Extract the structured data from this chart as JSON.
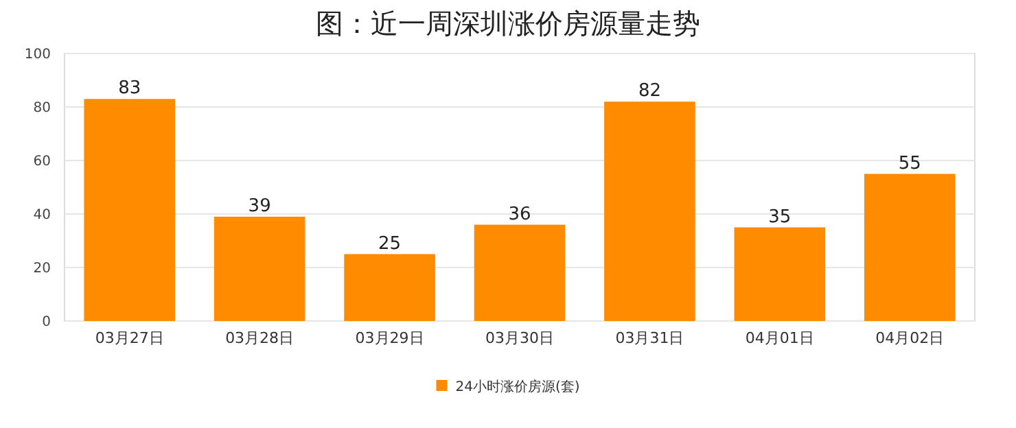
{
  "chart_data": {
    "type": "bar",
    "title": "图：近一周深圳涨价房源量走势",
    "categories": [
      "03月27日",
      "03月28日",
      "03月29日",
      "03月30日",
      "03月31日",
      "04月01日",
      "04月02日"
    ],
    "series": [
      {
        "name": "24小时涨价房源(套)",
        "color": "#ff8c00",
        "values": [
          83,
          39,
          25,
          36,
          82,
          35,
          55
        ]
      }
    ],
    "ylim": [
      0,
      100
    ],
    "yticks": [
      0,
      20,
      40,
      60,
      80,
      100
    ],
    "grid": "y",
    "legend": "bottom",
    "data_labels": true
  }
}
